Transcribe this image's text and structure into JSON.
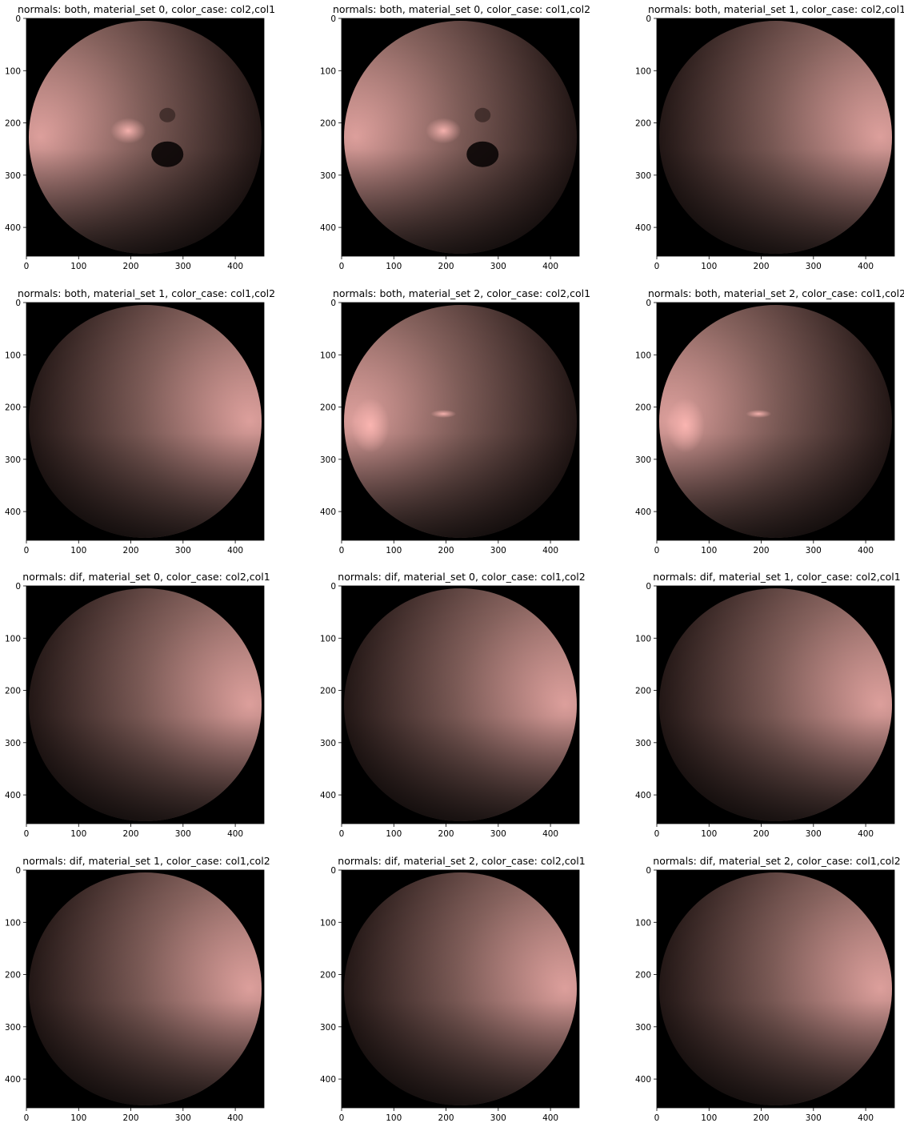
{
  "figure": {
    "panels": [
      {
        "title": "normals: both, material_set 0, color_case: col2,col1",
        "render": {
          "highlight": "dark-spot",
          "light_side": "left"
        }
      },
      {
        "title": "normals: both, material_set 0, color_case: col1,col2",
        "render": {
          "highlight": "dark-spot",
          "light_side": "left"
        }
      },
      {
        "title": "normals: both, material_set 1, color_case: col2,col1",
        "render": {
          "highlight": "none",
          "light_side": "right"
        }
      },
      {
        "title": "normals: both, material_set 1, color_case: col1,col2",
        "render": {
          "highlight": "none",
          "light_side": "right"
        }
      },
      {
        "title": "normals: both, material_set 2, color_case: col2,col1",
        "render": {
          "highlight": "specular",
          "light_side": "left"
        }
      },
      {
        "title": "normals: both, material_set 2, color_case: col1,col2",
        "render": {
          "highlight": "specular",
          "light_side": "left"
        }
      },
      {
        "title": "normals: dif, material_set 0, color_case: col2,col1",
        "render": {
          "highlight": "none",
          "light_side": "right"
        }
      },
      {
        "title": "normals: dif, material_set 0, color_case: col1,col2",
        "render": {
          "highlight": "none",
          "light_side": "right"
        }
      },
      {
        "title": "normals: dif, material_set 1, color_case: col2,col1",
        "render": {
          "highlight": "none",
          "light_side": "right"
        }
      },
      {
        "title": "normals: dif, material_set 1, color_case: col1,col2",
        "render": {
          "highlight": "none",
          "light_side": "right"
        }
      },
      {
        "title": "normals: dif, material_set 2, color_case: col2,col1",
        "render": {
          "highlight": "none",
          "light_side": "right"
        }
      },
      {
        "title": "normals: dif, material_set 2, color_case: col1,col2",
        "render": {
          "highlight": "none",
          "light_side": "right"
        }
      }
    ],
    "axes": {
      "x_ticks": [
        0,
        100,
        200,
        300,
        400
      ],
      "y_ticks": [
        0,
        100,
        200,
        300,
        400
      ],
      "image_extent": [
        0,
        455
      ]
    },
    "colors": {
      "background": "#000000",
      "sphere_highlight": "#ffb8b4",
      "sphere_mid": "#8a6560",
      "sphere_shadow": "#120a09"
    }
  }
}
